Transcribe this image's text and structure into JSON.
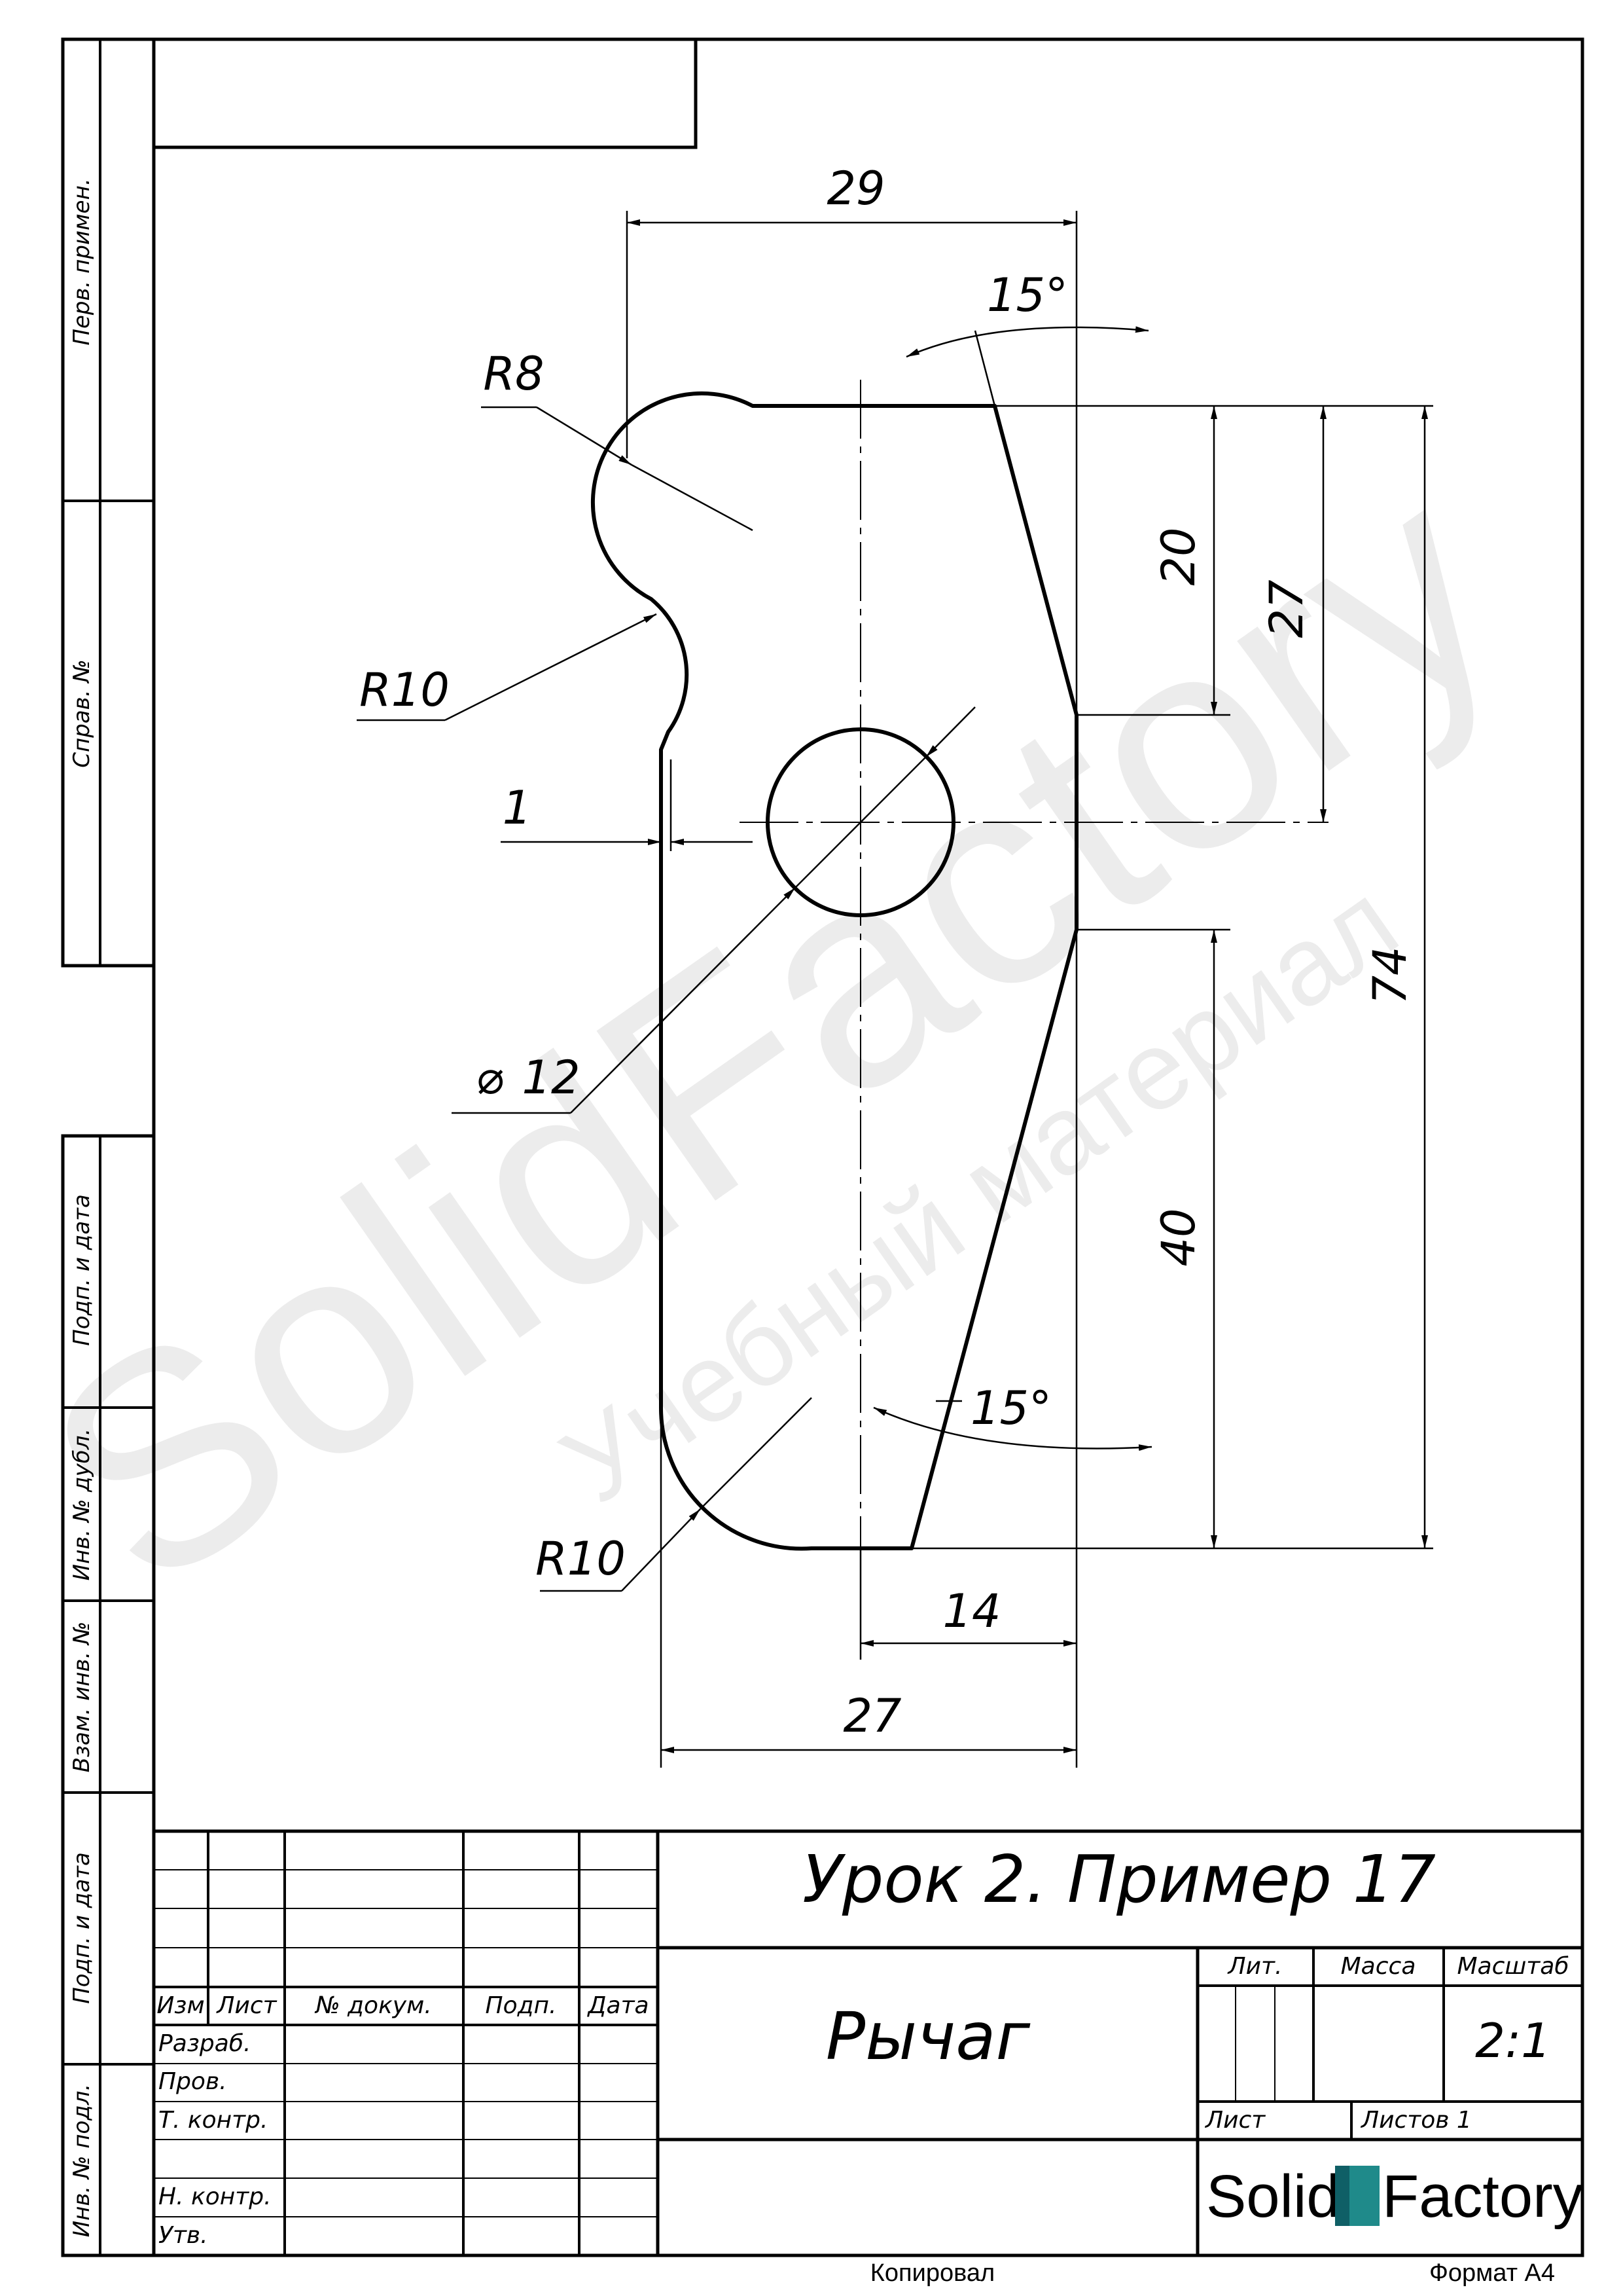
{
  "drawing": {
    "dimensions": {
      "top_width": "29",
      "angle_top": "15°",
      "radius_top": "R8",
      "radius_mid": "R10",
      "offset": "1",
      "hole_diameter": "12",
      "radius_bottom": "R10",
      "height_20": "20",
      "height_27": "27",
      "height_74": "74",
      "height_40": "40",
      "angle_bottom": "15°",
      "width_14": "14",
      "width_27": "27"
    },
    "diameter_symbol": "⌀"
  },
  "side_stamp": {
    "perv_primen": "Перв. примен.",
    "sprav_no": "Справ. №",
    "podp_data_1": "Подп. и дата",
    "inv_dubl": "Инв. № дубл.",
    "vzam_inv": "Взам. инв. №",
    "podp_data_2": "Подп. и дата",
    "inv_podl": "Инв. № подл."
  },
  "title_block": {
    "designation": "Урок 2. Пример 17",
    "part_name": "Рычаг",
    "headers": {
      "izm": "Изм",
      "list": "Лист",
      "doc_no": "№ докум.",
      "podp": "Подп.",
      "data": "Дата"
    },
    "roles": {
      "razrab": "Разраб.",
      "prov": "Пров.",
      "t_kontr": "Т. контр.",
      "n_kontr": "Н. контр.",
      "utv": "Утв."
    },
    "lit_label": "Лит.",
    "massa_label": "Масса",
    "masshtab_label": "Масштаб",
    "scale": "2:1",
    "sheet_label": "Лист",
    "sheets_label": "Листов 1",
    "logo_solid": "Solid",
    "logo_factory": "Factory"
  },
  "footer": {
    "copied": "Копировал",
    "format": "Формат А4"
  },
  "watermark": {
    "brand": "SolidFactory",
    "subtitle": "Учебный материал"
  },
  "colors": {
    "line": "#000000",
    "logo_accent": "#1f8a8a",
    "watermark": "#ececec"
  }
}
